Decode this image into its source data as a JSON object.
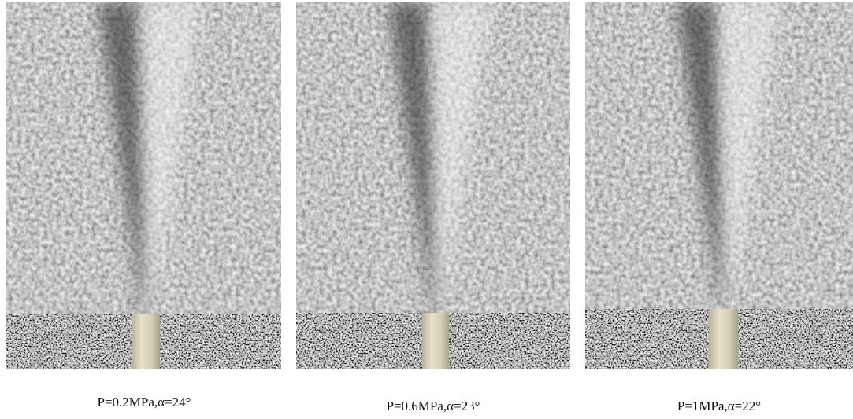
{
  "panels": [
    {
      "caption": "P=0.2MPa,α=24°"
    },
    {
      "caption": "P=0.6MPa,α=23°"
    },
    {
      "caption": "P=1MPa,α=22°"
    }
  ]
}
